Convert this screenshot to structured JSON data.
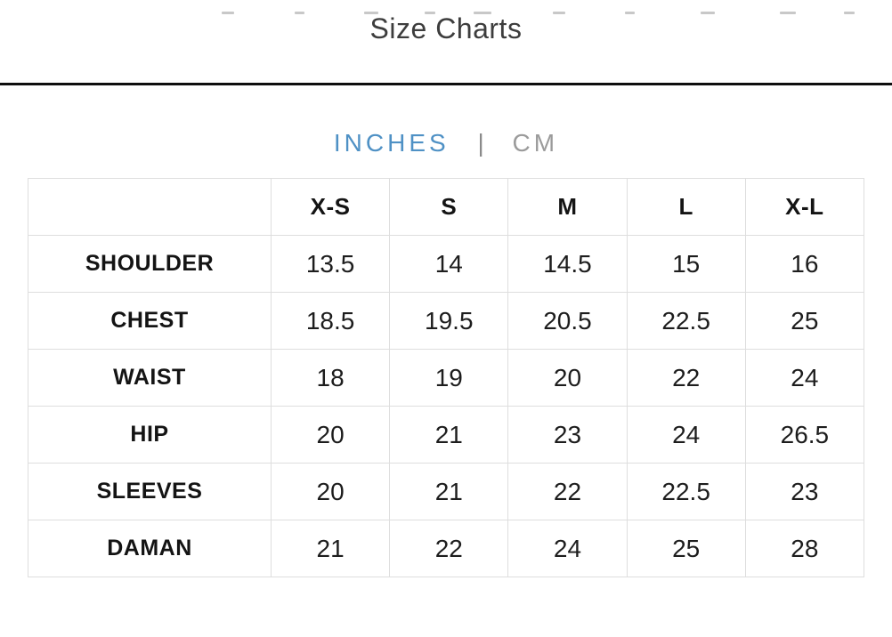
{
  "header": {
    "title": "Size Charts"
  },
  "unit_toggle": {
    "separator": "|",
    "options": [
      {
        "label": "INCHES",
        "active": true
      },
      {
        "label": "CM",
        "active": false
      }
    ],
    "active_color": "#4f91c5",
    "inactive_color": "#9b9b9b"
  },
  "size_table": {
    "columns": [
      "",
      "X-S",
      "S",
      "M",
      "L",
      "X-L"
    ],
    "rows": [
      {
        "label": "SHOULDER",
        "values": [
          "13.5",
          "14",
          "14.5",
          "15",
          "16"
        ]
      },
      {
        "label": "CHEST",
        "values": [
          "18.5",
          "19.5",
          "20.5",
          "22.5",
          "25"
        ]
      },
      {
        "label": "WAIST",
        "values": [
          "18",
          "19",
          "20",
          "22",
          "24"
        ]
      },
      {
        "label": "HIP",
        "values": [
          "20",
          "21",
          "23",
          "24",
          "26.5"
        ]
      },
      {
        "label": "SLEEVES",
        "values": [
          "20",
          "21",
          "22",
          "22.5",
          "23"
        ]
      },
      {
        "label": "DAMAN",
        "values": [
          "21",
          "22",
          "24",
          "25",
          "28"
        ]
      }
    ]
  }
}
